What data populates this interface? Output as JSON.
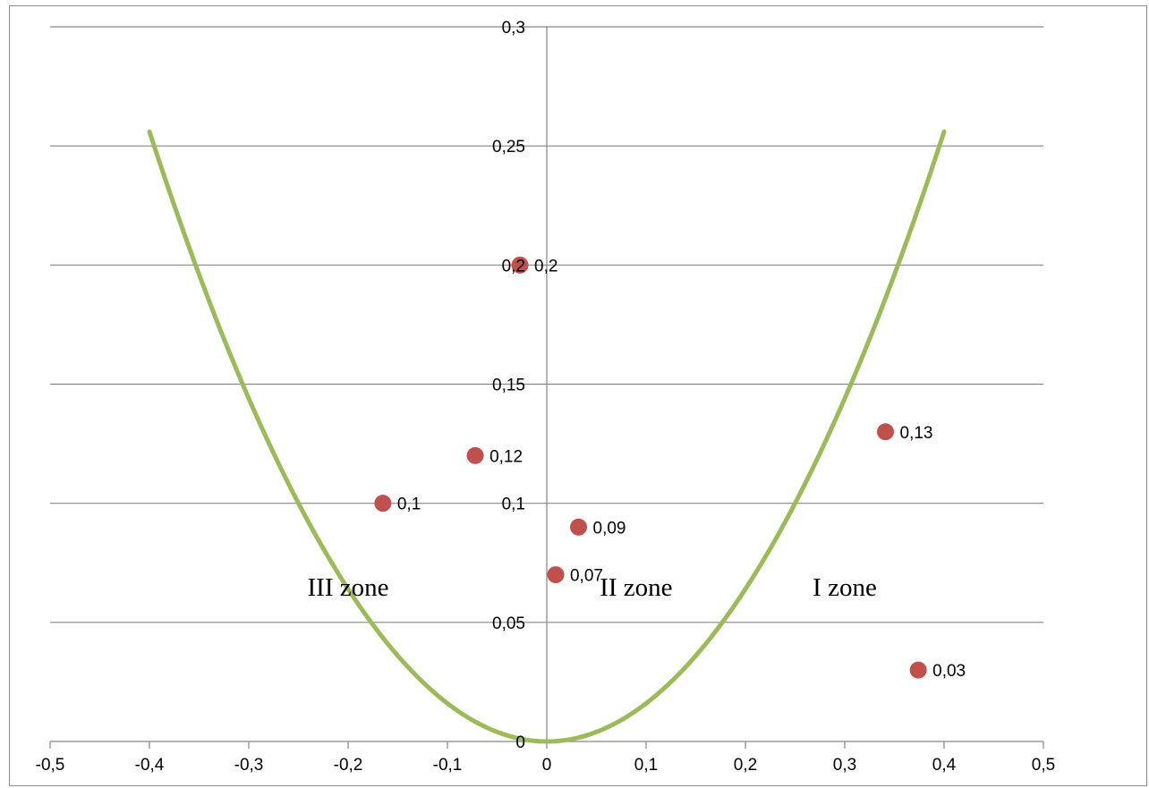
{
  "chart_data": {
    "type": "scatter",
    "x_ticks": [
      "-0,5",
      "-0,4",
      "-0,3",
      "-0,2",
      "-0,1",
      "0",
      "0,1",
      "0,2",
      "0,3",
      "0,4",
      "0,5"
    ],
    "y_ticks": [
      "0",
      "0,05",
      "0,1",
      "0,15",
      "0,2",
      "0,25",
      "0,3"
    ],
    "xlim": [
      -0.5,
      0.5
    ],
    "ylim": [
      0,
      0.3
    ],
    "grid": "horizontal",
    "legend": "none",
    "points": [
      {
        "x": -0.027,
        "y": 0.2,
        "label": "0,2"
      },
      {
        "x": 0.341,
        "y": 0.13,
        "label": "0,13"
      },
      {
        "x": -0.072,
        "y": 0.12,
        "label": "0,12"
      },
      {
        "x": -0.165,
        "y": 0.1,
        "label": "0,1"
      },
      {
        "x": 0.032,
        "y": 0.09,
        "label": "0,09"
      },
      {
        "x": 0.009,
        "y": 0.07,
        "label": "0,07"
      },
      {
        "x": 0.374,
        "y": 0.03,
        "label": "0,03"
      }
    ],
    "curve": {
      "formula": "y = 1.6 * x^2",
      "x_range": [
        -0.4,
        0.4
      ]
    },
    "annotations": [
      {
        "text": "III zone",
        "x": -0.2,
        "y": 0.065
      },
      {
        "text": "II zone",
        "x": 0.09,
        "y": 0.065
      },
      {
        "text": "I zone",
        "x": 0.3,
        "y": 0.065
      }
    ],
    "colors": {
      "points": "#c0504d",
      "curve": "#9bbb59",
      "grid": "#868686",
      "axis": "#868686"
    }
  }
}
